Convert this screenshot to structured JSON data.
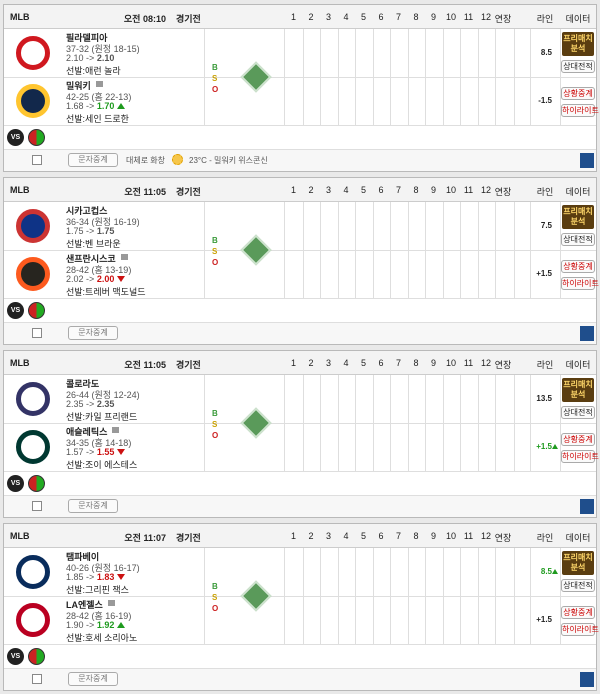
{
  "labels": {
    "innings": [
      "1",
      "2",
      "3",
      "4",
      "5",
      "6",
      "7",
      "8",
      "9",
      "10",
      "11",
      "12"
    ],
    "extra": "연장",
    "line": "라인",
    "data": "데이터",
    "arrow": "->",
    "vs": "VS",
    "bso": [
      "B",
      "S",
      "O"
    ],
    "prematch": "프리매치 분석",
    "h2h": "상대전적",
    "live": "상황중계",
    "highlight": "하이라이트",
    "text_cast": "문자중계"
  },
  "games": [
    {
      "league": "MLB",
      "time": "오전 08:10",
      "status": "경기전",
      "weather": "대체로 화창",
      "weather_detail": "23°C - 밀워키 위스콘신",
      "teams": [
        {
          "name": "필라델피아",
          "record": "37-32 (원정 18-15)",
          "odds_from": "2.10",
          "odds_to": "2.10",
          "trend": "same",
          "pitcher": "선발:애런 놀라",
          "line": "8.5",
          "line_trend": "same",
          "logo": "phi"
        },
        {
          "name": "밀워키",
          "record": "42-25 (홈 22-13)",
          "odds_from": "1.68",
          "odds_to": "1.70",
          "trend": "up",
          "pitcher": "선발:세인 드로한",
          "line": "-1.5",
          "line_trend": "same",
          "logo": "mil"
        }
      ]
    },
    {
      "league": "MLB",
      "time": "오전 11:05",
      "status": "경기전",
      "teams": [
        {
          "name": "시카고컵스",
          "record": "36-34 (원정 16-19)",
          "odds_from": "1.75",
          "odds_to": "1.75",
          "trend": "same",
          "pitcher": "선발:벤 브라운",
          "line": "7.5",
          "line_trend": "same",
          "logo": "chc"
        },
        {
          "name": "샌프란시스코",
          "record": "28-42 (홈 13-19)",
          "odds_from": "2.02",
          "odds_to": "2.00",
          "trend": "down",
          "pitcher": "선발:트레버 맥도널드",
          "line": "+1.5",
          "line_trend": "same",
          "logo": "sf"
        }
      ]
    },
    {
      "league": "MLB",
      "time": "오전 11:05",
      "status": "경기전",
      "teams": [
        {
          "name": "콜로라도",
          "record": "26-44 (원정 12-24)",
          "odds_from": "2.35",
          "odds_to": "2.35",
          "trend": "same",
          "pitcher": "선발:카일 프리랜드",
          "line": "13.5",
          "line_trend": "same",
          "logo": "col"
        },
        {
          "name": "애슬레틱스",
          "record": "34-35 (홈 14-18)",
          "odds_from": "1.57",
          "odds_to": "1.55",
          "trend": "down",
          "pitcher": "선발:조이 에스테스",
          "line": "+1.5",
          "line_trend": "up",
          "logo": "oak"
        }
      ]
    },
    {
      "league": "MLB",
      "time": "오전 11:07",
      "status": "경기전",
      "teams": [
        {
          "name": "탬파베이",
          "record": "40-26 (원정 16-17)",
          "odds_from": "1.85",
          "odds_to": "1.83",
          "trend": "down",
          "pitcher": "선발:그리핀 잭스",
          "line": "8.5",
          "line_trend": "up",
          "logo": "tb"
        },
        {
          "name": "LA엔젤스",
          "record": "28-42 (홈 16-19)",
          "odds_from": "1.90",
          "odds_to": "1.92",
          "trend": "up",
          "pitcher": "선발:호세 소리아노",
          "line": "+1.5",
          "line_trend": "same",
          "logo": "laa"
        }
      ]
    }
  ]
}
